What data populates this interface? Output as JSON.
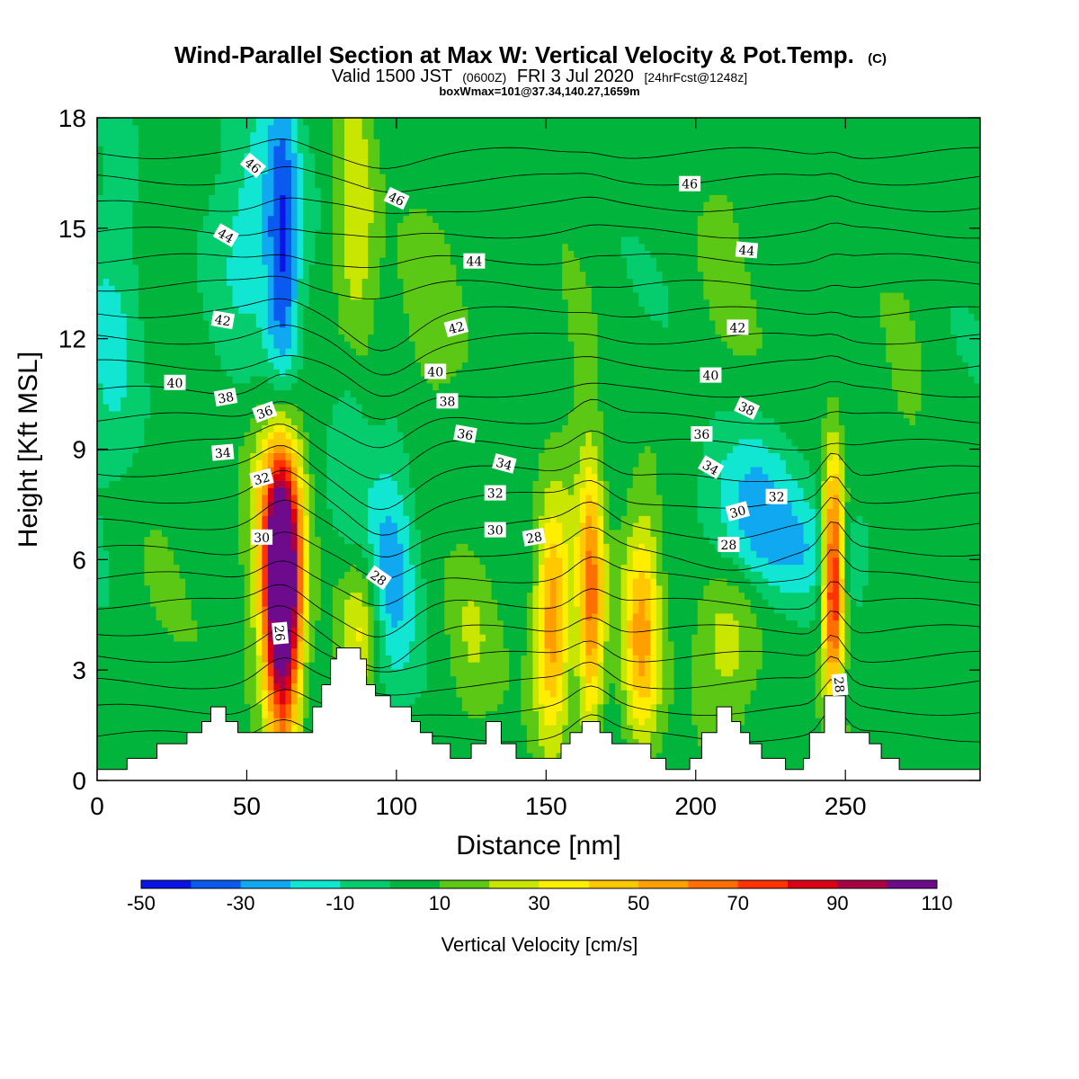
{
  "title": "Wind-Parallel Section at Max W: Vertical Velocity & Pot.Temp.",
  "title_mark": "(C)",
  "subtitle_parts": {
    "prefix": "Valid 1500 JST",
    "utc": "(0600Z)",
    "date": "FRI 3 Jul 2020",
    "fcst": "[24hrFcst@1248z]"
  },
  "subtitle2": "boxWmax=101@37.34,140.27,1659m",
  "chart_data": {
    "type": "heatmap",
    "xlabel": "Distance [nm]",
    "ylabel": "Height [Kft MSL]",
    "xlim": [
      0,
      295
    ],
    "ylim": [
      0,
      18
    ],
    "x_ticks": [
      0,
      50,
      100,
      150,
      200,
      250
    ],
    "y_ticks": [
      0,
      3,
      6,
      9,
      12,
      15,
      18
    ],
    "colorbar": {
      "label": "Vertical Velocity [cm/s]",
      "levels": [
        -50,
        -40,
        -30,
        -20,
        -10,
        0,
        10,
        20,
        30,
        40,
        50,
        60,
        70,
        80,
        90,
        100,
        110
      ],
      "tick_labels": [
        "-50",
        "-30",
        "-10",
        "10",
        "30",
        "50",
        "70",
        "90",
        "110"
      ],
      "colors": [
        "#0a14e6",
        "#0a5af0",
        "#10a8f0",
        "#10e6d2",
        "#05cd6e",
        "#00b43c",
        "#5ac814",
        "#c8e600",
        "#ffee00",
        "#ffc800",
        "#ffa000",
        "#ff6e00",
        "#ff3200",
        "#dc0014",
        "#aa0046",
        "#6e0a8c"
      ]
    },
    "terrain": [
      [
        0,
        0.3
      ],
      [
        10,
        0.3
      ],
      [
        10,
        0.6
      ],
      [
        20,
        0.6
      ],
      [
        20,
        1.0
      ],
      [
        30,
        1.0
      ],
      [
        30,
        1.3
      ],
      [
        35,
        1.3
      ],
      [
        35,
        1.6
      ],
      [
        38,
        1.6
      ],
      [
        38,
        2.0
      ],
      [
        43,
        2.0
      ],
      [
        43,
        1.6
      ],
      [
        47,
        1.6
      ],
      [
        47,
        1.3
      ],
      [
        72,
        1.3
      ],
      [
        72,
        2.0
      ],
      [
        75,
        2.0
      ],
      [
        75,
        2.6
      ],
      [
        78,
        2.6
      ],
      [
        78,
        3.3
      ],
      [
        80,
        3.3
      ],
      [
        80,
        3.6
      ],
      [
        88,
        3.6
      ],
      [
        88,
        3.3
      ],
      [
        90,
        3.3
      ],
      [
        90,
        2.6
      ],
      [
        93,
        2.6
      ],
      [
        93,
        2.3
      ],
      [
        98,
        2.3
      ],
      [
        98,
        2.0
      ],
      [
        105,
        2.0
      ],
      [
        105,
        1.6
      ],
      [
        108,
        1.6
      ],
      [
        108,
        1.3
      ],
      [
        112,
        1.3
      ],
      [
        112,
        1.0
      ],
      [
        118,
        1.0
      ],
      [
        118,
        0.6
      ],
      [
        125,
        0.6
      ],
      [
        125,
        1.0
      ],
      [
        130,
        1.0
      ],
      [
        130,
        1.6
      ],
      [
        135,
        1.6
      ],
      [
        135,
        1.0
      ],
      [
        140,
        1.0
      ],
      [
        140,
        0.6
      ],
      [
        155,
        0.6
      ],
      [
        155,
        1.0
      ],
      [
        158,
        1.0
      ],
      [
        158,
        1.3
      ],
      [
        162,
        1.3
      ],
      [
        162,
        1.6
      ],
      [
        168,
        1.6
      ],
      [
        168,
        1.3
      ],
      [
        172,
        1.3
      ],
      [
        172,
        1.0
      ],
      [
        185,
        1.0
      ],
      [
        185,
        0.6
      ],
      [
        190,
        0.6
      ],
      [
        190,
        0.3
      ],
      [
        198,
        0.3
      ],
      [
        198,
        0.6
      ],
      [
        202,
        0.6
      ],
      [
        202,
        1.3
      ],
      [
        207,
        1.3
      ],
      [
        207,
        2.0
      ],
      [
        212,
        2.0
      ],
      [
        212,
        1.6
      ],
      [
        215,
        1.6
      ],
      [
        215,
        1.3
      ],
      [
        218,
        1.3
      ],
      [
        218,
        1.0
      ],
      [
        222,
        1.0
      ],
      [
        222,
        0.6
      ],
      [
        230,
        0.6
      ],
      [
        230,
        0.3
      ],
      [
        236,
        0.3
      ],
      [
        236,
        0.6
      ],
      [
        238,
        0.6
      ],
      [
        238,
        1.3
      ],
      [
        243,
        1.3
      ],
      [
        243,
        2.3
      ],
      [
        250,
        2.3
      ],
      [
        250,
        1.3
      ],
      [
        258,
        1.3
      ],
      [
        258,
        1.0
      ],
      [
        262,
        1.0
      ],
      [
        262,
        0.6
      ],
      [
        268,
        0.6
      ],
      [
        268,
        0.3
      ],
      [
        295,
        0.3
      ]
    ],
    "w_features": [
      {
        "x": 62,
        "y": 5.0,
        "sx": 4,
        "sy": 2.8,
        "w": 118
      },
      {
        "x": 60,
        "y": 6.5,
        "sx": 6,
        "sy": 2.5,
        "w": 45
      },
      {
        "x": 86,
        "y": 14.0,
        "sx": 5,
        "sy": 3.5,
        "w": 33
      },
      {
        "x": 88,
        "y": 4.2,
        "sx": 5,
        "sy": 1.5,
        "w": 32
      },
      {
        "x": 152,
        "y": 4.3,
        "sx": 4,
        "sy": 2.2,
        "w": 52
      },
      {
        "x": 165,
        "y": 5.0,
        "sx": 3,
        "sy": 2.6,
        "w": 56
      },
      {
        "x": 182,
        "y": 4.0,
        "sx": 4.5,
        "sy": 2.3,
        "w": 48
      },
      {
        "x": 210,
        "y": 3.8,
        "sx": 8,
        "sy": 2.0,
        "w": 24
      },
      {
        "x": 246,
        "y": 5.5,
        "sx": 2.5,
        "sy": 2.2,
        "w": 88
      },
      {
        "x": 125,
        "y": 4.0,
        "sx": 6,
        "sy": 1.8,
        "w": 16
      },
      {
        "x": 62,
        "y": 14.0,
        "sx": 4,
        "sy": 3.5,
        "w": -42
      },
      {
        "x": 85,
        "y": 10.0,
        "sx": 5,
        "sy": 2.5,
        "w": -28
      },
      {
        "x": 98,
        "y": 6.0,
        "sx": 6,
        "sy": 2.5,
        "w": -30
      },
      {
        "x": 50,
        "y": 15.5,
        "sx": 8,
        "sy": 2.5,
        "w": -18
      },
      {
        "x": 5,
        "y": 12.5,
        "sx": 8,
        "sy": 3.0,
        "w": -18
      },
      {
        "x": 218,
        "y": 7.5,
        "sx": 12,
        "sy": 1.5,
        "w": -28
      },
      {
        "x": 235,
        "y": 6.2,
        "sx": 18,
        "sy": 1.0,
        "w": -14
      },
      {
        "x": 160,
        "y": 10.0,
        "sx": 6,
        "sy": 3.0,
        "w": 10
      },
      {
        "x": 210,
        "y": 15.5,
        "sx": 8,
        "sy": 3.0,
        "w": 10
      },
      {
        "x": 110,
        "y": 12.0,
        "sx": 8,
        "sy": 4.0,
        "w": 8
      },
      {
        "x": 270,
        "y": 10.0,
        "sx": 6,
        "sy": 3.0,
        "w": 8
      },
      {
        "x": 20,
        "y": 8.0,
        "sx": 8,
        "sy": 4.0,
        "w": 6
      }
    ],
    "theta_base": 26,
    "contour_labels": [
      {
        "text": "46",
        "x": 52,
        "y": 16.7,
        "angle": 40
      },
      {
        "text": "46",
        "x": 100,
        "y": 15.8,
        "angle": 25
      },
      {
        "text": "46",
        "x": 198,
        "y": 16.2,
        "angle": 0
      },
      {
        "text": "44",
        "x": 43,
        "y": 14.8,
        "angle": 30
      },
      {
        "text": "44",
        "x": 126,
        "y": 14.1,
        "angle": 0
      },
      {
        "text": "44",
        "x": 217,
        "y": 14.4,
        "angle": 5
      },
      {
        "text": "42",
        "x": 42,
        "y": 12.5,
        "angle": 10
      },
      {
        "text": "42",
        "x": 120,
        "y": 12.3,
        "angle": -15
      },
      {
        "text": "42",
        "x": 214,
        "y": 12.3,
        "angle": 0
      },
      {
        "text": "40",
        "x": 26,
        "y": 10.8,
        "angle": 0
      },
      {
        "text": "40",
        "x": 113,
        "y": 11.1,
        "angle": 0
      },
      {
        "text": "40",
        "x": 205,
        "y": 11.0,
        "angle": 0
      },
      {
        "text": "38",
        "x": 43,
        "y": 10.4,
        "angle": -10
      },
      {
        "text": "38",
        "x": 117,
        "y": 10.3,
        "angle": 0
      },
      {
        "text": "38",
        "x": 217,
        "y": 10.1,
        "angle": 25
      },
      {
        "text": "36",
        "x": 56,
        "y": 10.0,
        "angle": -20
      },
      {
        "text": "36",
        "x": 123,
        "y": 9.4,
        "angle": 10
      },
      {
        "text": "36",
        "x": 202,
        "y": 9.4,
        "angle": 0
      },
      {
        "text": "34",
        "x": 42,
        "y": 8.9,
        "angle": -5
      },
      {
        "text": "34",
        "x": 136,
        "y": 8.6,
        "angle": 15
      },
      {
        "text": "34",
        "x": 205,
        "y": 8.5,
        "angle": 30
      },
      {
        "text": "32",
        "x": 55,
        "y": 8.2,
        "angle": -15
      },
      {
        "text": "32",
        "x": 133,
        "y": 7.8,
        "angle": 0
      },
      {
        "text": "32",
        "x": 227,
        "y": 7.7,
        "angle": 0
      },
      {
        "text": "30",
        "x": 55,
        "y": 6.6,
        "angle": 0
      },
      {
        "text": "30",
        "x": 133,
        "y": 6.8,
        "angle": 0
      },
      {
        "text": "30",
        "x": 214,
        "y": 7.3,
        "angle": -15
      },
      {
        "text": "28",
        "x": 94,
        "y": 5.5,
        "angle": 35
      },
      {
        "text": "28",
        "x": 146,
        "y": 6.6,
        "angle": -10
      },
      {
        "text": "28",
        "x": 211,
        "y": 6.4,
        "angle": 0
      },
      {
        "text": "28",
        "x": 248,
        "y": 2.6,
        "angle": 85
      },
      {
        "text": "26",
        "x": 61,
        "y": 4.0,
        "angle": 85
      }
    ]
  }
}
